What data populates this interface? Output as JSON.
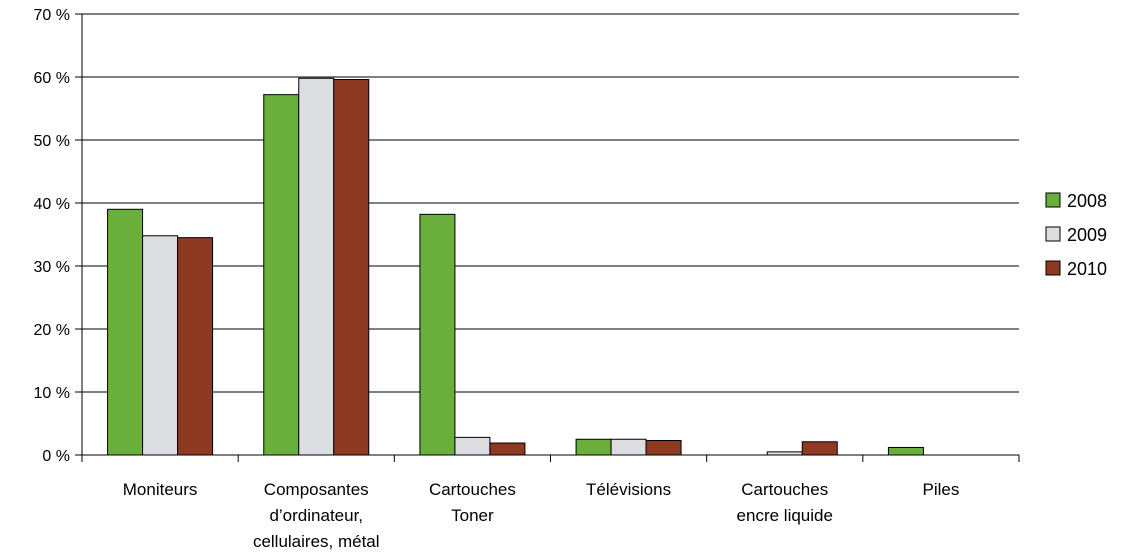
{
  "chart_data": {
    "type": "bar",
    "categories": [
      [
        "Moniteurs"
      ],
      [
        "Composantes",
        "d’ordinateur,",
        "cellulaires, métal"
      ],
      [
        "Cartouches",
        "Toner"
      ],
      [
        "Télévisions"
      ],
      [
        "Cartouches",
        "encre liquide"
      ],
      [
        "Piles"
      ]
    ],
    "series": [
      {
        "name": "2008",
        "color": "#6aaf3c",
        "values": [
          39.0,
          57.2,
          38.2,
          2.5,
          0.0,
          1.2
        ]
      },
      {
        "name": "2009",
        "color": "#dcdde0",
        "values": [
          34.8,
          59.8,
          2.8,
          2.5,
          0.5,
          0.0
        ]
      },
      {
        "name": "2010",
        "color": "#8e3a22",
        "values": [
          34.5,
          59.6,
          1.9,
          2.3,
          2.1,
          0.0
        ]
      }
    ],
    "y_ticks": [
      "0 %",
      "10 %",
      "20 %",
      "30 %",
      "40 %",
      "50 %",
      "60 %",
      "70 %"
    ],
    "ylim": [
      0,
      70
    ],
    "grid": true,
    "legend_position": "right"
  }
}
